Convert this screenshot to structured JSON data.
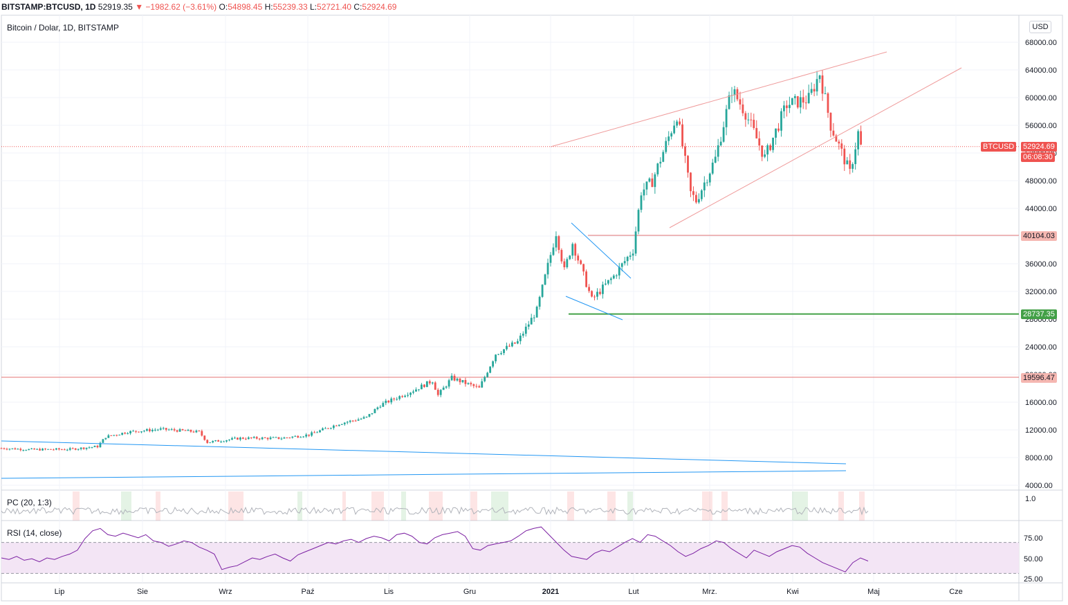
{
  "header": {
    "symbol": "BITSTAMP:BTCUSD, 1D",
    "last": "52919.35",
    "change": "▼ −1982.62 (−3.61%)",
    "o_label": "O:",
    "o_val": "54898.45",
    "h_label": "H:",
    "h_val": "55239.33",
    "l_label": "L:",
    "l_val": "52721.40",
    "c_label": "C:",
    "c_val": "52924.69"
  },
  "main_pane": {
    "title": "Bitcoin / Dolar, 1D, BITSTAMP",
    "currency_button": "USD",
    "price_badge": {
      "symbol": "BTCUSD",
      "price": "52924.69",
      "countdown": "06:08:30"
    },
    "level_badges": [
      "40104.03",
      "28737.35",
      "19596.47"
    ]
  },
  "pc_pane": {
    "title": "PC (20, 1:3)",
    "scale_label": "1.0"
  },
  "rsi_pane": {
    "title": "RSI (14, close)",
    "scale_labels": [
      "75.00",
      "50.00",
      "25.00"
    ]
  },
  "colors": {
    "up": "#26a69a",
    "down": "#ef5350",
    "trend_blue": "#2196f3",
    "channel_red": "#ef9a9a",
    "support_green": "#43a047",
    "level_red": "#e57373",
    "rsi_line": "#7b1fa2",
    "rsi_band": "#f3e5f5"
  },
  "chart_data": {
    "type": "candlestick",
    "price_axis": {
      "ylim": [
        4000,
        68000
      ],
      "ticks": [
        "68000.00",
        "64000.00",
        "60000.00",
        "56000.00",
        "52000.00",
        "48000.00",
        "44000.00",
        "40000.00",
        "36000.00",
        "32000.00",
        "28000.00",
        "24000.00",
        "20000.00",
        "16000.00",
        "12000.00",
        "8000.00",
        "4000.00"
      ]
    },
    "x_labels": [
      "Lip",
      "Sie",
      "Wrz",
      "Paź",
      "Lis",
      "Gru",
      "2021",
      "Lut",
      "Mrz.",
      "Kwi",
      "Maj",
      "Cze"
    ],
    "close_path": [
      [
        "2020-06-20",
        9350
      ],
      [
        "2020-07-01",
        9150
      ],
      [
        "2020-07-15",
        9200
      ],
      [
        "2020-07-25",
        9600
      ],
      [
        "2020-07-28",
        11000
      ],
      [
        "2020-08-05",
        11700
      ],
      [
        "2020-08-17",
        12100
      ],
      [
        "2020-08-31",
        11700
      ],
      [
        "2020-09-03",
        10200
      ],
      [
        "2020-09-15",
        10800
      ],
      [
        "2020-09-30",
        10800
      ],
      [
        "2020-10-10",
        11300
      ],
      [
        "2020-10-21",
        12900
      ],
      [
        "2020-10-31",
        13800
      ],
      [
        "2020-11-05",
        15600
      ],
      [
        "2020-11-17",
        17700
      ],
      [
        "2020-11-24",
        19100
      ],
      [
        "2020-11-26",
        17000
      ],
      [
        "2020-12-01",
        19500
      ],
      [
        "2020-12-11",
        18000
      ],
      [
        "2020-12-17",
        23000
      ],
      [
        "2020-12-25",
        24700
      ],
      [
        "2021-01-01",
        29300
      ],
      [
        "2021-01-08",
        40500
      ],
      [
        "2021-01-11",
        35000
      ],
      [
        "2021-01-14",
        39000
      ],
      [
        "2021-01-21",
        30800
      ],
      [
        "2021-01-29",
        34200
      ],
      [
        "2021-02-05",
        38000
      ],
      [
        "2021-02-08",
        46400
      ],
      [
        "2021-02-12",
        47900
      ],
      [
        "2021-02-21",
        57500
      ],
      [
        "2021-02-26",
        46200
      ],
      [
        "2021-02-28",
        45100
      ],
      [
        "2021-03-07",
        51200
      ],
      [
        "2021-03-13",
        61200
      ],
      [
        "2021-03-18",
        57800
      ],
      [
        "2021-03-25",
        51300
      ],
      [
        "2021-04-02",
        59000
      ],
      [
        "2021-04-10",
        59800
      ],
      [
        "2021-04-14",
        63500
      ],
      [
        "2021-04-18",
        56000
      ],
      [
        "2021-04-25",
        49100
      ],
      [
        "2021-04-28",
        54900
      ],
      [
        "2021-04-29",
        52925
      ]
    ],
    "horizontal_levels": [
      {
        "price": 40104.03,
        "color": "red"
      },
      {
        "price": 28737.35,
        "color": "green"
      },
      {
        "price": 19596.47,
        "color": "red"
      }
    ],
    "rsi": {
      "ylim": [
        20,
        95
      ],
      "levels": [
        70,
        30
      ],
      "values": [
        50,
        48,
        52,
        47,
        49,
        45,
        50,
        48,
        52,
        55,
        60,
        75,
        85,
        88,
        80,
        78,
        82,
        79,
        76,
        80,
        72,
        70,
        65,
        68,
        72,
        70,
        64,
        60,
        55,
        35,
        38,
        40,
        45,
        50,
        48,
        52,
        55,
        50,
        46,
        54,
        58,
        62,
        66,
        70,
        68,
        72,
        74,
        70,
        75,
        78,
        76,
        72,
        80,
        82,
        78,
        70,
        68,
        76,
        80,
        82,
        84,
        78,
        62,
        60,
        66,
        68,
        70,
        72,
        78,
        85,
        88,
        90,
        80,
        70,
        60,
        52,
        50,
        48,
        56,
        60,
        58,
        64,
        70,
        75,
        70,
        80,
        78,
        72,
        66,
        58,
        52,
        56,
        62,
        66,
        72,
        70,
        62,
        56,
        50,
        60,
        56,
        52,
        58,
        62,
        66,
        64,
        56,
        50,
        44,
        40,
        36,
        32,
        44,
        50,
        46
      ]
    },
    "pc_highlights": []
  }
}
